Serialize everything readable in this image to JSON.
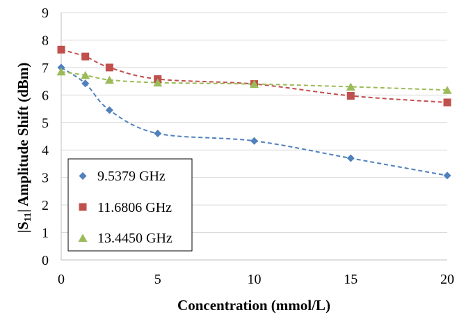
{
  "chart_data": {
    "type": "line",
    "xlabel": "Concentration (mmol/L)",
    "ylabel_parts": [
      "|S",
      "11",
      "| Amplitude Shift (dBm)"
    ],
    "xlim": [
      0,
      20
    ],
    "ylim": [
      0,
      9
    ],
    "x_ticks": [
      0,
      5,
      10,
      15,
      20
    ],
    "y_ticks": [
      0,
      1,
      2,
      3,
      4,
      5,
      6,
      7,
      8,
      9
    ],
    "grid": "horizontal",
    "legend_position": "bottom-left",
    "series": [
      {
        "name": "9.5379 GHz",
        "marker": "diamond",
        "color": "#4F81BD",
        "points": [
          [
            0,
            7.0
          ],
          [
            1.25,
            6.42
          ],
          [
            2.5,
            5.45
          ],
          [
            5,
            4.6
          ],
          [
            10,
            4.33
          ],
          [
            15,
            3.7
          ],
          [
            20,
            3.07
          ]
        ]
      },
      {
        "name": "11.6806 GHz",
        "marker": "square",
        "color": "#C0504D",
        "points": [
          [
            0,
            7.65
          ],
          [
            1.25,
            7.4
          ],
          [
            2.5,
            7.0
          ],
          [
            5,
            6.58
          ],
          [
            10,
            6.4
          ],
          [
            15,
            5.97
          ],
          [
            20,
            5.73
          ]
        ]
      },
      {
        "name": "13.4450 GHz",
        "marker": "triangle",
        "color": "#9BBB59",
        "points": [
          [
            0,
            6.85
          ],
          [
            1.25,
            6.72
          ],
          [
            2.5,
            6.55
          ],
          [
            5,
            6.45
          ],
          [
            10,
            6.4
          ],
          [
            15,
            6.3
          ],
          [
            20,
            6.18
          ]
        ]
      }
    ]
  }
}
